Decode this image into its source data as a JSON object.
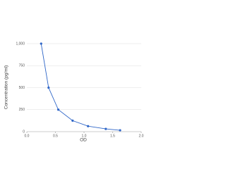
{
  "chart_data": {
    "type": "line",
    "x_label": "OD",
    "y_label": "Concentration (pg/ml)",
    "x": [
      0.25,
      0.38,
      0.55,
      0.8,
      1.07,
      1.38,
      1.63
    ],
    "series": [
      {
        "color": "#2f66c8",
        "values": [
          1000,
          500,
          250,
          125,
          62.5,
          31.25,
          15.6
        ]
      }
    ],
    "xlim": [
      0,
      2
    ],
    "xticks": [
      {
        "value": 0,
        "label": "0.0"
      },
      0.5,
      {
        "value": 1,
        "label": "1.0"
      },
      1.5,
      {
        "value": 2,
        "label": "2.0"
      }
    ],
    "ylim": [
      0,
      1000
    ],
    "yticks": [
      0,
      250,
      500,
      750,
      {
        "value": 1000,
        "label": "1,000"
      }
    ],
    "grid": true
  }
}
